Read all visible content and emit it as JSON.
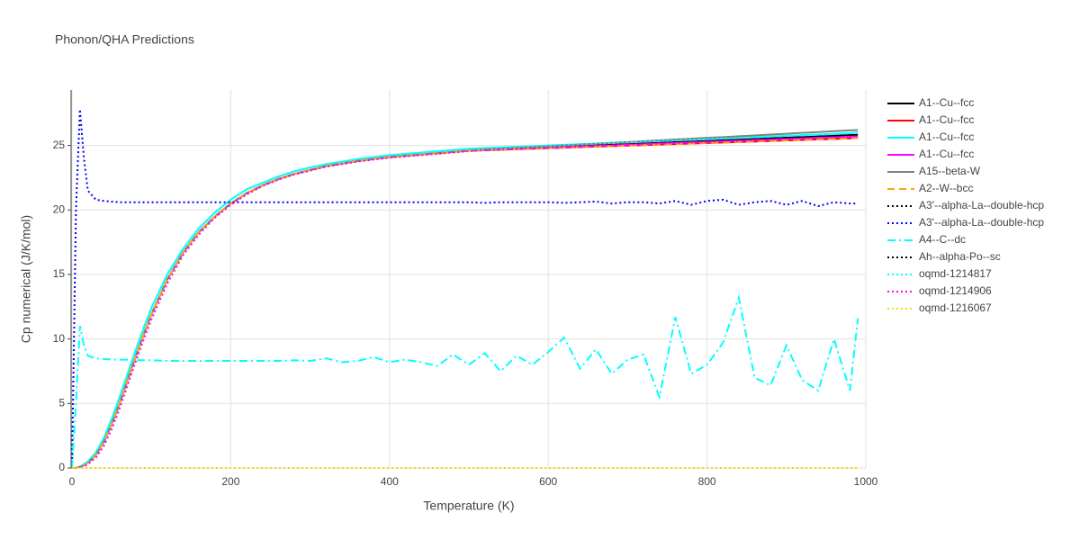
{
  "chart_data": {
    "type": "line",
    "title": "Phonon/QHA Predictions",
    "x_label": "Temperature (K)",
    "y_label": "Cp numerical (J/K/mol)",
    "xlim": [
      0,
      1000
    ],
    "ylim": [
      0,
      29.3
    ],
    "xticks": [
      0,
      200,
      400,
      600,
      800,
      1000
    ],
    "yticks": [
      0,
      5,
      10,
      15,
      20,
      25
    ],
    "grid": true,
    "legend": "right",
    "x": [
      0,
      5,
      10,
      15,
      20,
      30,
      40,
      50,
      60,
      70,
      80,
      90,
      100,
      120,
      140,
      160,
      180,
      200,
      220,
      240,
      260,
      280,
      300,
      320,
      340,
      360,
      380,
      400,
      420,
      440,
      460,
      480,
      500,
      520,
      540,
      560,
      580,
      600,
      620,
      640,
      660,
      680,
      700,
      720,
      740,
      760,
      780,
      800,
      820,
      840,
      860,
      880,
      900,
      920,
      940,
      960,
      980,
      990
    ],
    "series": [
      {
        "name": "A1--Cu--fcc",
        "color": "#000000",
        "dash": "solid",
        "values": [
          0,
          0,
          0.1,
          0.2,
          0.4,
          1.0,
          2.0,
          3.4,
          5.0,
          6.8,
          8.6,
          10.3,
          11.9,
          14.6,
          16.7,
          18.3,
          19.5,
          20.5,
          21.3,
          21.9,
          22.4,
          22.8,
          23.1,
          23.4,
          23.6,
          23.8,
          23.95,
          24.1,
          24.2,
          24.3,
          24.4,
          24.5,
          24.6,
          24.65,
          24.7,
          24.75,
          24.8,
          24.85,
          24.9,
          24.95,
          25.0,
          25.05,
          25.1,
          25.15,
          25.2,
          25.25,
          25.3,
          25.35,
          25.4,
          25.45,
          25.5,
          25.55,
          25.6,
          25.65,
          25.7,
          25.75,
          25.8,
          25.82
        ]
      },
      {
        "name": "A1--Cu--fcc",
        "color": "#ff0000",
        "dash": "solid",
        "values": [
          0,
          0,
          0.1,
          0.2,
          0.4,
          1.0,
          2.0,
          3.4,
          5.0,
          6.8,
          8.6,
          10.3,
          11.9,
          14.6,
          16.7,
          18.3,
          19.5,
          20.5,
          21.3,
          21.9,
          22.4,
          22.8,
          23.1,
          23.4,
          23.6,
          23.8,
          23.95,
          24.1,
          24.2,
          24.3,
          24.4,
          24.5,
          24.6,
          24.63,
          24.67,
          24.71,
          24.75,
          24.79,
          24.83,
          24.87,
          24.91,
          24.95,
          24.99,
          25.03,
          25.07,
          25.11,
          25.15,
          25.19,
          25.23,
          25.27,
          25.31,
          25.35,
          25.39,
          25.43,
          25.47,
          25.51,
          25.55,
          25.58
        ]
      },
      {
        "name": "A1--Cu--fcc",
        "color": "#00ffff",
        "dash": "solid",
        "values": [
          0,
          0,
          0.1,
          0.3,
          0.5,
          1.2,
          2.3,
          3.8,
          5.5,
          7.3,
          9.1,
          10.8,
          12.4,
          15.0,
          17.0,
          18.6,
          19.8,
          20.8,
          21.6,
          22.1,
          22.6,
          23.0,
          23.3,
          23.55,
          23.75,
          23.95,
          24.1,
          24.25,
          24.35,
          24.45,
          24.55,
          24.65,
          24.75,
          24.8,
          24.85,
          24.9,
          24.95,
          25.0,
          25.05,
          25.1,
          25.15,
          25.2,
          25.25,
          25.3,
          25.35,
          25.4,
          25.45,
          25.5,
          25.55,
          25.6,
          25.65,
          25.7,
          25.75,
          25.8,
          25.85,
          25.9,
          25.95,
          26.0
        ]
      },
      {
        "name": "A1--Cu--fcc",
        "color": "#ff00ff",
        "dash": "solid",
        "values": [
          0,
          0,
          0.1,
          0.2,
          0.4,
          1.0,
          2.0,
          3.4,
          5.0,
          6.8,
          8.6,
          10.3,
          11.9,
          14.6,
          16.7,
          18.3,
          19.5,
          20.5,
          21.3,
          21.9,
          22.4,
          22.8,
          23.1,
          23.4,
          23.6,
          23.8,
          23.95,
          24.1,
          24.2,
          24.3,
          24.4,
          24.5,
          24.6,
          24.64,
          24.69,
          24.73,
          24.78,
          24.82,
          24.87,
          24.91,
          24.96,
          25.0,
          25.05,
          25.09,
          25.14,
          25.18,
          25.23,
          25.27,
          25.32,
          25.36,
          25.41,
          25.45,
          25.5,
          25.54,
          25.59,
          25.63,
          25.68,
          25.7
        ]
      },
      {
        "name": "A15--beta-W",
        "color": "#808080",
        "dash": "solid",
        "values": [
          0,
          0,
          0.1,
          0.2,
          0.4,
          1.0,
          2.0,
          3.4,
          5.0,
          6.8,
          8.6,
          10.3,
          11.9,
          14.6,
          16.7,
          18.3,
          19.5,
          20.5,
          21.3,
          21.9,
          22.4,
          22.8,
          23.1,
          23.4,
          23.6,
          23.8,
          23.95,
          24.1,
          24.2,
          24.3,
          24.4,
          24.5,
          24.6,
          24.68,
          24.74,
          24.81,
          24.87,
          24.94,
          25.0,
          25.07,
          25.13,
          25.2,
          25.26,
          25.33,
          25.39,
          25.46,
          25.52,
          25.59,
          25.65,
          25.72,
          25.78,
          25.85,
          25.91,
          25.98,
          26.04,
          26.11,
          26.17,
          26.2
        ]
      },
      {
        "name": "A2--W--bcc",
        "color": "#ffa500",
        "dash": "dash",
        "values": [
          0,
          0,
          0.1,
          0.2,
          0.4,
          1.0,
          2.0,
          3.4,
          5.0,
          6.8,
          8.6,
          10.3,
          11.9,
          14.6,
          16.7,
          18.3,
          19.5,
          20.5,
          21.3,
          21.9,
          22.4,
          22.8,
          23.1,
          23.4,
          23.6,
          23.8,
          23.95,
          24.1,
          24.2,
          24.3,
          24.4,
          24.5,
          24.6,
          24.63,
          24.67,
          24.71,
          24.75,
          24.79,
          24.83,
          24.87,
          24.91,
          24.95,
          24.99,
          25.03,
          25.07,
          25.11,
          25.15,
          25.19,
          25.23,
          25.27,
          25.31,
          25.35,
          25.39,
          25.43,
          25.47,
          25.51,
          25.55,
          25.58
        ]
      },
      {
        "name": "A3'--alpha-La--double-hcp",
        "color": "#000000",
        "dash": "dot",
        "values": [
          0,
          0,
          0,
          0,
          0,
          0,
          0,
          0,
          0,
          0,
          0,
          0,
          0,
          0,
          0,
          0,
          0,
          0,
          0,
          0,
          0,
          0,
          0,
          0,
          0,
          0,
          0,
          0,
          0,
          0,
          0,
          0,
          0,
          0,
          0,
          0,
          0,
          0,
          0,
          0,
          0,
          0,
          0,
          0,
          0,
          0,
          0,
          0,
          0,
          0,
          0,
          0,
          0,
          0,
          0,
          0,
          0,
          0
        ]
      },
      {
        "name": "A3'--alpha-La--double-hcp",
        "color": "#0000ff",
        "dash": "dot",
        "values": [
          0,
          20,
          27.8,
          24,
          21.5,
          20.8,
          20.7,
          20.65,
          20.6,
          20.6,
          20.6,
          20.6,
          20.6,
          20.6,
          20.6,
          20.6,
          20.6,
          20.6,
          20.6,
          20.6,
          20.6,
          20.6,
          20.6,
          20.6,
          20.6,
          20.6,
          20.6,
          20.6,
          20.6,
          20.6,
          20.6,
          20.6,
          20.6,
          20.55,
          20.6,
          20.6,
          20.6,
          20.6,
          20.55,
          20.6,
          20.65,
          20.5,
          20.6,
          20.6,
          20.5,
          20.7,
          20.4,
          20.7,
          20.8,
          20.4,
          20.6,
          20.7,
          20.4,
          20.7,
          20.3,
          20.6,
          20.5,
          20.5
        ]
      },
      {
        "name": "A4--C--dc",
        "color": "#00ffff",
        "dash": "dashdot",
        "values": [
          0,
          5,
          11,
          9.5,
          8.7,
          8.5,
          8.45,
          8.4,
          8.4,
          8.4,
          8.35,
          8.35,
          8.35,
          8.3,
          8.3,
          8.3,
          8.3,
          8.3,
          8.3,
          8.3,
          8.3,
          8.35,
          8.3,
          8.5,
          8.2,
          8.3,
          8.6,
          8.2,
          8.4,
          8.2,
          7.9,
          8.8,
          8.0,
          8.9,
          7.5,
          8.7,
          8.0,
          9.0,
          10.1,
          7.7,
          9.2,
          7.3,
          8.4,
          8.8,
          5.5,
          11.7,
          7.3,
          8.0,
          9.7,
          13.2,
          7.0,
          6.4,
          9.5,
          6.8,
          6.0,
          10.0,
          6.0,
          11.6
        ]
      },
      {
        "name": "Ah--alpha-Po--sc",
        "color": "#000000",
        "dash": "dot",
        "values": [
          0,
          0,
          0,
          0,
          0,
          0,
          0,
          0,
          0,
          0,
          0,
          0,
          0,
          0,
          0,
          0,
          0,
          0,
          0,
          0,
          0,
          0,
          0,
          0,
          0,
          0,
          0,
          0,
          0,
          0,
          0,
          0,
          0,
          0,
          0,
          0,
          0,
          0,
          0,
          0,
          0,
          0,
          0,
          0,
          0,
          0,
          0,
          0,
          0,
          0,
          0,
          0,
          0,
          0,
          0,
          0,
          0,
          0
        ]
      },
      {
        "name": "oqmd-1214817",
        "color": "#00ffff",
        "dash": "dot",
        "values": [
          0,
          0,
          0.1,
          0.3,
          0.5,
          1.2,
          2.3,
          3.8,
          5.5,
          7.3,
          9.1,
          10.8,
          12.4,
          15.0,
          17.0,
          18.6,
          19.8,
          20.8,
          21.6,
          22.1,
          22.6,
          23.0,
          23.3,
          23.55,
          23.75,
          23.95,
          24.1,
          24.25,
          24.35,
          24.45,
          24.55,
          24.65,
          24.75,
          24.8,
          24.85,
          24.9,
          24.95,
          25.0,
          25.05,
          25.1,
          25.15,
          25.2,
          25.25,
          25.3,
          25.35,
          25.4,
          25.45,
          25.5,
          25.55,
          25.6,
          25.65,
          25.7,
          25.75,
          25.8,
          25.85,
          25.9,
          25.95,
          25.97
        ]
      },
      {
        "name": "oqmd-1214906",
        "color": "#ff00ff",
        "dash": "dot",
        "values": [
          0,
          0,
          0.05,
          0.1,
          0.3,
          0.8,
          1.7,
          3.0,
          4.6,
          6.4,
          8.2,
          9.9,
          11.5,
          14.3,
          16.5,
          18.1,
          19.4,
          20.4,
          21.2,
          21.85,
          22.35,
          22.75,
          23.05,
          23.35,
          23.55,
          23.75,
          23.9,
          24.05,
          24.15,
          24.25,
          24.35,
          24.45,
          24.55,
          24.64,
          24.69,
          24.73,
          24.78,
          24.82,
          24.87,
          24.91,
          24.96,
          25.0,
          25.05,
          25.09,
          25.14,
          25.18,
          25.23,
          25.27,
          25.32,
          25.36,
          25.41,
          25.45,
          25.5,
          25.54,
          25.59,
          25.63,
          25.68,
          25.7
        ]
      },
      {
        "name": "oqmd-1216067",
        "color": "#ffd700",
        "dash": "dot",
        "values": [
          0,
          0,
          0,
          0,
          0,
          0,
          0,
          0,
          0,
          0,
          0,
          0,
          0,
          0,
          0,
          0,
          0,
          0,
          0,
          0,
          0,
          0,
          0,
          0,
          0,
          0,
          0,
          0,
          0,
          0,
          0,
          0,
          0,
          0,
          0,
          0,
          0,
          0,
          0,
          0,
          0,
          0,
          0,
          0,
          0,
          0,
          0,
          0,
          0,
          0,
          0,
          0,
          0,
          0,
          0,
          0,
          0,
          0
        ]
      }
    ]
  }
}
